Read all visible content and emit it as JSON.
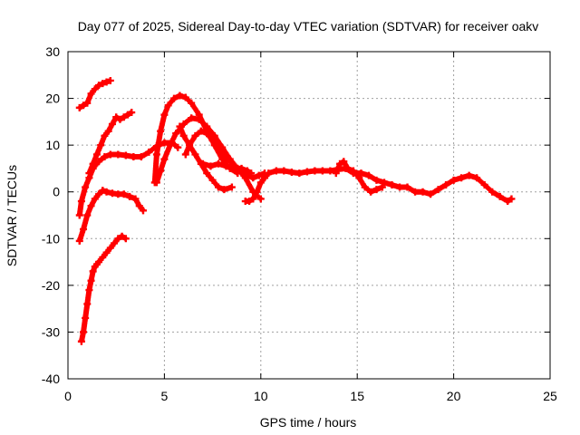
{
  "chart_data": {
    "type": "scatter",
    "title": "Day 077 of 2025, Sidereal Day-to-day VTEC variation (SDTVAR) for receiver oakv",
    "xlabel": "GPS time / hours",
    "ylabel": "SDTVAR / TECUs",
    "xlim": [
      0,
      25
    ],
    "ylim": [
      -40,
      30
    ],
    "xticks": [
      0,
      5,
      10,
      15,
      20,
      25
    ],
    "yticks": [
      30,
      20,
      10,
      0,
      -10,
      -20,
      -30,
      -40
    ],
    "xtick_labels": [
      "0",
      "5",
      "10",
      "15",
      "20",
      "25"
    ],
    "ytick_labels": [
      "30",
      "20",
      "10",
      "0",
      "-10",
      "-20",
      "-30",
      "-40"
    ],
    "grid": true,
    "marker": "plus",
    "series_color": "#ff0000",
    "series": [
      {
        "name": "track-1",
        "x": [
          0.6,
          0.8,
          1.0,
          1.2,
          1.4,
          1.6,
          1.8,
          2.0,
          2.2
        ],
        "y": [
          18,
          18.5,
          19,
          21,
          22,
          22.8,
          23.2,
          23.5,
          23.8
        ]
      },
      {
        "name": "track-2",
        "x": [
          1.1,
          1.3,
          1.5,
          1.7,
          1.9,
          2.1,
          2.3,
          2.5,
          2.7,
          2.9,
          3.1,
          3.3
        ],
        "y": [
          4,
          6,
          8,
          10,
          12,
          13,
          14.5,
          16,
          15.5,
          16,
          16.5,
          17
        ]
      },
      {
        "name": "track-3",
        "x": [
          0.6,
          0.7,
          0.9,
          1.1,
          1.3,
          1.6,
          1.9,
          2.2,
          2.6,
          3.0,
          3.4,
          3.8,
          4.2,
          4.6,
          5.0,
          5.4,
          5.7
        ],
        "y": [
          -5,
          -2,
          1,
          3,
          5,
          6.5,
          7.5,
          8,
          8,
          7.8,
          7.5,
          7.5,
          8.5,
          9.8,
          10.5,
          10.5,
          9.5
        ]
      },
      {
        "name": "track-4",
        "x": [
          0.6,
          0.8,
          1.0,
          1.2,
          1.4,
          1.6,
          1.8,
          2.0,
          2.3,
          2.6,
          2.9,
          3.2,
          3.5,
          3.7,
          3.9
        ],
        "y": [
          -10.5,
          -8,
          -5,
          -3,
          -1.5,
          -0.5,
          0.3,
          0,
          -0.3,
          -0.5,
          -0.5,
          -1,
          -1.5,
          -3,
          -4
        ]
      },
      {
        "name": "track-5",
        "x": [
          0.7,
          0.8,
          0.9,
          1.0,
          1.1,
          1.2,
          1.3,
          1.4,
          1.5,
          1.6,
          1.8,
          2.0,
          2.2,
          2.4,
          2.6,
          2.8,
          3.0
        ],
        "y": [
          -32,
          -30,
          -27,
          -24,
          -21,
          -19,
          -17,
          -16,
          -15.5,
          -15,
          -14,
          -13,
          -12,
          -11,
          -10,
          -9.5,
          -10
        ]
      },
      {
        "name": "track-6",
        "x": [
          4.5,
          4.6,
          4.8,
          5.0,
          5.2,
          5.5,
          5.8,
          6.1,
          6.4,
          6.8,
          7.2,
          7.6,
          8.0,
          8.4,
          8.8
        ],
        "y": [
          2,
          8,
          13,
          16.5,
          18.5,
          20,
          20.6,
          20.2,
          19,
          16.5,
          13,
          10,
          7,
          5,
          4
        ]
      },
      {
        "name": "track-7",
        "x": [
          4.6,
          4.8,
          5.0,
          5.3,
          5.6,
          6.0,
          6.4,
          6.8,
          7.2,
          7.6,
          8.0,
          8.4,
          8.8,
          9.2,
          9.6,
          10.0
        ],
        "y": [
          2,
          4.5,
          7,
          10,
          12.5,
          14.5,
          15.8,
          15.5,
          14,
          12,
          9.5,
          7,
          5,
          3,
          0,
          -1.5
        ]
      },
      {
        "name": "track-8",
        "x": [
          6.1,
          6.3,
          6.6,
          6.9,
          7.2,
          7.5,
          7.8,
          8.1,
          8.4,
          8.7,
          9.0,
          9.3,
          9.6,
          9.9,
          10.2
        ],
        "y": [
          8,
          10,
          12,
          13,
          12.5,
          11,
          9.5,
          8,
          6.5,
          5,
          4,
          3.5,
          3,
          3.5,
          4
        ]
      },
      {
        "name": "track-9",
        "x": [
          5.8,
          6.0,
          6.3,
          6.6,
          6.9,
          7.2,
          7.5,
          7.8,
          8.1,
          8.5
        ],
        "y": [
          14,
          12,
          10,
          8,
          6,
          4,
          2.5,
          1,
          0.5,
          1
        ]
      },
      {
        "name": "track-10",
        "x": [
          7.0,
          7.4,
          7.8,
          8.2,
          8.6,
          9.0,
          9.3,
          9.5
        ],
        "y": [
          6,
          5.5,
          6,
          5.5,
          5,
          5,
          4.5,
          4
        ]
      },
      {
        "name": "track-11",
        "x": [
          9.2,
          9.4,
          9.6,
          9.8,
          10.0,
          10.2,
          10.4,
          10.8,
          11.2,
          11.6,
          12.0,
          12.4,
          12.8,
          13.2,
          13.6,
          14.0,
          14.4,
          14.8,
          15.2,
          15.6,
          16.0,
          16.4,
          16.8,
          17.2,
          17.6,
          18.0,
          18.4,
          18.8,
          19.2,
          19.6,
          20.0,
          20.4,
          20.8,
          21.2,
          21.6,
          22.0,
          22.4,
          22.8,
          23.0
        ],
        "y": [
          -2,
          -2,
          -1.5,
          0,
          2,
          3,
          4,
          4.5,
          4.5,
          4.2,
          4,
          4.3,
          4.5,
          4.5,
          4.5,
          4.8,
          5,
          4,
          4,
          3.5,
          2.5,
          2,
          1.5,
          1,
          1,
          0,
          0,
          -0.5,
          0.5,
          1.5,
          2.5,
          3,
          3.5,
          3,
          1.5,
          0,
          -1,
          -2,
          -1.5
        ]
      },
      {
        "name": "track-12",
        "x": [
          13.9,
          14.1,
          14.3,
          14.5,
          14.8,
          15.1,
          15.4,
          15.7,
          16.0,
          16.3
        ],
        "y": [
          4,
          6,
          6.5,
          5,
          4.5,
          3,
          1,
          0,
          0.5,
          1
        ]
      }
    ]
  }
}
